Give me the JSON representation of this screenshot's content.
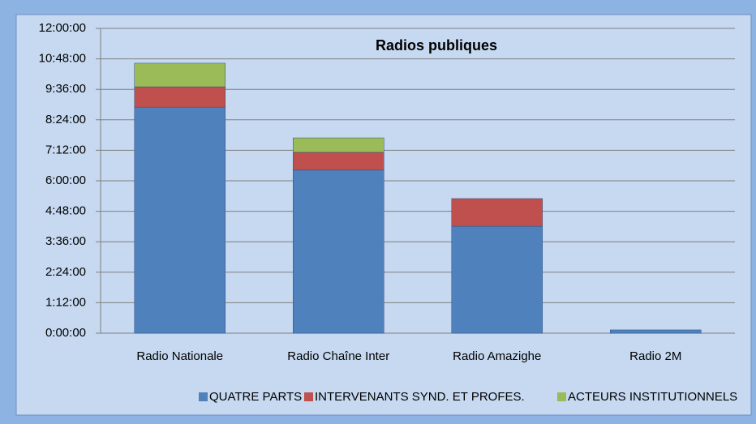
{
  "chart_data": {
    "type": "stacked_bar",
    "title": "Radios publiques",
    "categories": [
      "Radio Nationale",
      "Radio Chaîne Inter",
      "Radio Amazighe",
      "Radio 2M"
    ],
    "series": [
      {
        "name": "QUATRE PARTS",
        "color": "#4f81bd",
        "values": [
          8.9,
          6.42,
          4.21,
          0.13
        ]
      },
      {
        "name": "INTERVENANTS SYND. ET PROFES.",
        "color": "#c0504d",
        "values": [
          0.8,
          0.7,
          1.09,
          0
        ]
      },
      {
        "name": "ACTEURS INSTITUTIONNELS",
        "color": "#9bbb59",
        "values": [
          0.93,
          0.57,
          0,
          0
        ]
      }
    ],
    "ylim": [
      0,
      12
    ],
    "yticks": [
      {
        "value": 0,
        "label": "0:00:00"
      },
      {
        "value": 1.2,
        "label": "1:12:00"
      },
      {
        "value": 2.4,
        "label": "2:24:00"
      },
      {
        "value": 3.6,
        "label": "3:36:00"
      },
      {
        "value": 4.8,
        "label": "4:48:00"
      },
      {
        "value": 6,
        "label": "6:00:00"
      },
      {
        "value": 7.2,
        "label": "7:12:00"
      },
      {
        "value": 8.4,
        "label": "8:24:00"
      },
      {
        "value": 9.6,
        "label": "9:36:00"
      },
      {
        "value": 10.8,
        "label": "10:48:00"
      },
      {
        "value": 12,
        "label": "12:00:00"
      }
    ],
    "grid": true,
    "legend": "bottom"
  }
}
